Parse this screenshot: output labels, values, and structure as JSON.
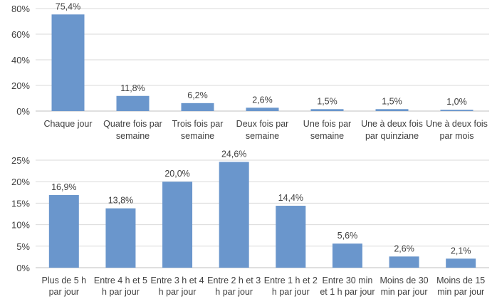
{
  "chart_data": [
    {
      "type": "bar",
      "categories": [
        [
          "Chaque jour"
        ],
        [
          "Quatre fois par",
          "semaine"
        ],
        [
          "Trois fois par",
          "semaine"
        ],
        [
          "Deux fois par",
          "semaine"
        ],
        [
          "Une fois par",
          "semaine"
        ],
        [
          "Une à deux fois",
          "par quinziane"
        ],
        [
          "Une à deux fois",
          "par mois"
        ]
      ],
      "values": [
        75.4,
        11.8,
        6.2,
        2.6,
        1.5,
        1.5,
        1.0
      ],
      "data_labels": [
        "75,4%",
        "11,8%",
        "6,2%",
        "2,6%",
        "1,5%",
        "1,5%",
        "1,0%"
      ],
      "ylim": [
        0,
        80
      ],
      "yticks": [
        0,
        20,
        40,
        60,
        80
      ],
      "ytick_labels": [
        "0%",
        "20%",
        "40%",
        "60%",
        "80%"
      ],
      "grid": true,
      "bar_color": "#6a96cc"
    },
    {
      "type": "bar",
      "categories": [
        [
          "Plus de 5 h",
          "par jour"
        ],
        [
          "Entre 4 h et 5",
          "h par jour"
        ],
        [
          "Entre 3 h et 4",
          "h par jour"
        ],
        [
          "Entre 2 h et 3",
          "h par jour"
        ],
        [
          "Entre 1 h et 2",
          "h par jour"
        ],
        [
          "Entre 30 min",
          "et 1 h par jour"
        ],
        [
          "Moins de 30",
          "min par jour"
        ],
        [
          "Moins de 15",
          "min par jour"
        ]
      ],
      "values": [
        16.9,
        13.8,
        20.0,
        24.6,
        14.4,
        5.6,
        2.6,
        2.1
      ],
      "data_labels": [
        "16,9%",
        "13,8%",
        "20,0%",
        "24,6%",
        "14,4%",
        "5,6%",
        "2,6%",
        "2,1%"
      ],
      "ylim": [
        0,
        25
      ],
      "yticks": [
        0,
        5,
        10,
        15,
        20,
        25
      ],
      "ytick_labels": [
        "0%",
        "5%",
        "10%",
        "15%",
        "20%",
        "25%"
      ],
      "grid": true,
      "bar_color": "#6a96cc"
    }
  ]
}
